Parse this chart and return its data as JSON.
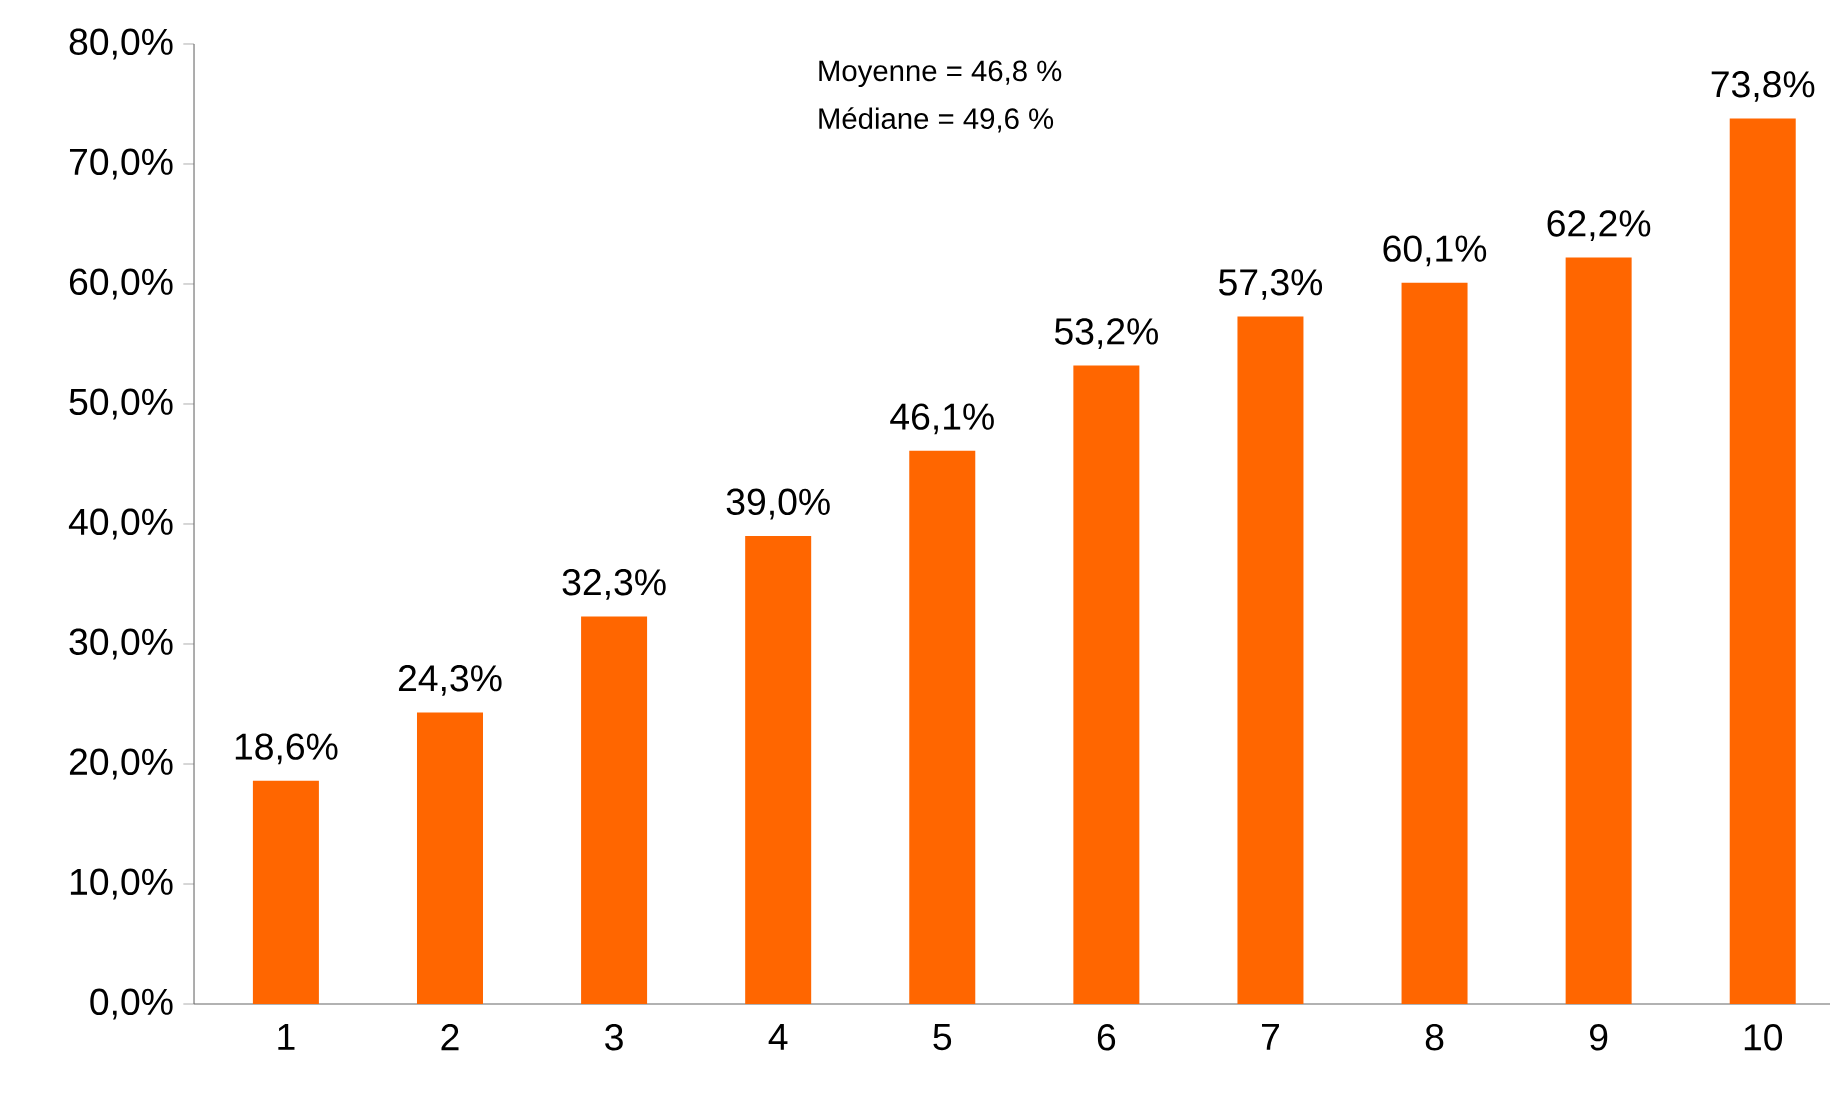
{
  "chart_data": {
    "type": "bar",
    "categories": [
      "1",
      "2",
      "3",
      "4",
      "5",
      "6",
      "7",
      "8",
      "9",
      "10"
    ],
    "values": [
      18.6,
      24.3,
      32.3,
      39.0,
      46.1,
      53.2,
      57.3,
      60.1,
      62.2,
      73.8
    ],
    "value_labels": [
      "18,6%",
      "24,3%",
      "32,3%",
      "39,0%",
      "46,1%",
      "53,2%",
      "57,3%",
      "60,1%",
      "62,2%",
      "73,8%"
    ],
    "color": "#ff6600",
    "ylim": [
      0,
      80
    ],
    "yticks": [
      {
        "value": 0,
        "label": "0,0%"
      },
      {
        "value": 10,
        "label": "10,0%"
      },
      {
        "value": 20,
        "label": "20,0%"
      },
      {
        "value": 30,
        "label": "30,0%"
      },
      {
        "value": 40,
        "label": "40,0%"
      },
      {
        "value": 50,
        "label": "50,0%"
      },
      {
        "value": 60,
        "label": "60,0%"
      },
      {
        "value": 70,
        "label": "70,0%"
      },
      {
        "value": 80,
        "label": "80,0%"
      }
    ],
    "annotations": [
      "Moyenne = 46,8 %",
      "Médiane = 49,6 %"
    ],
    "grid": false
  }
}
